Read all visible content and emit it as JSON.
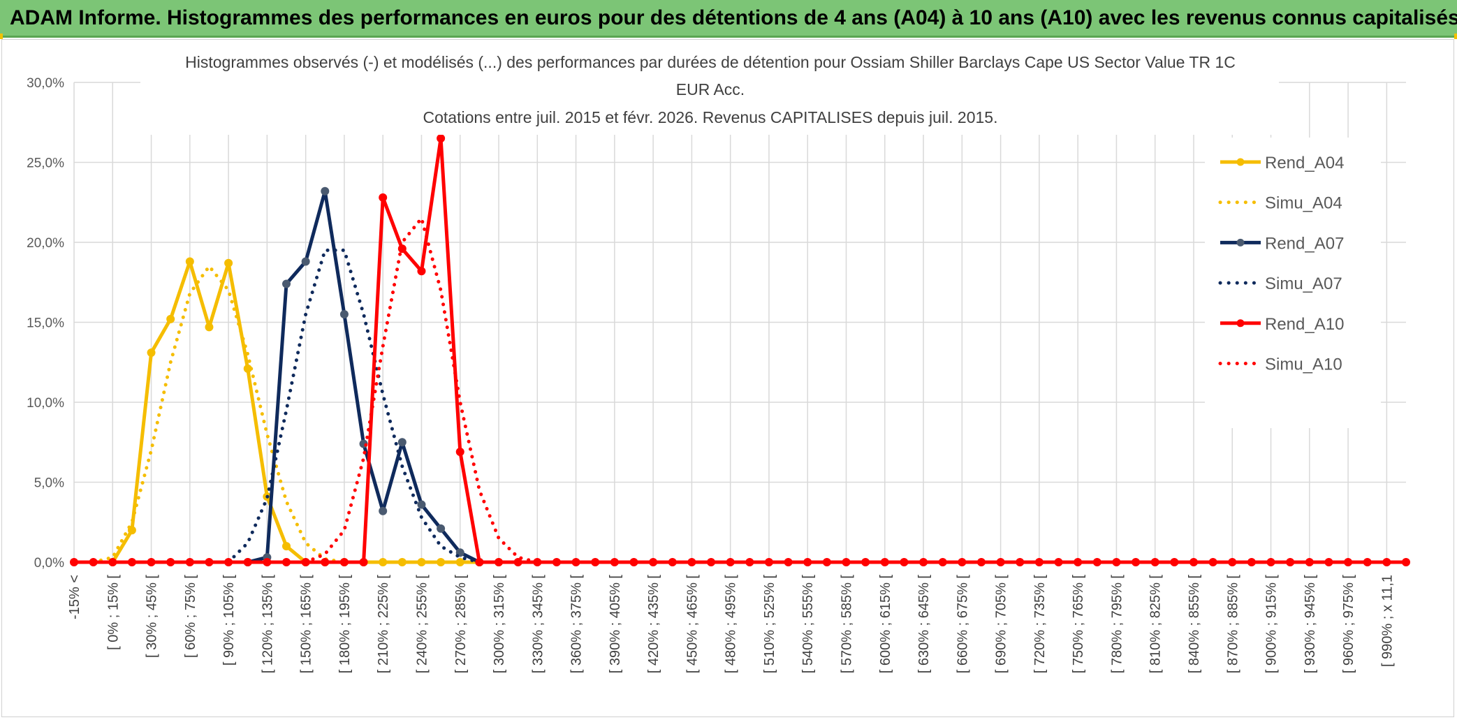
{
  "header": {
    "title": "ADAM Informe. Histogrammes des performances en euros pour des détentions de 4 ans (A04) à 10 ans (A10) avec les revenus connus capitalisés"
  },
  "colors": {
    "a04": "#f5bd00",
    "a07": "#0f2a5c",
    "a10": "#ff0000",
    "marker_a07": "#4a5a70",
    "header_bg": "#7cc576",
    "grid": "#d9d9d9"
  },
  "chart_data": {
    "type": "line",
    "title_lines": [
      "Histogrammes observés (-) et modélisés (...) des performances par durées de détention pour Ossiam Shiller Barclays Cape US Sector Value TR 1C",
      "EUR Acc.",
      "Cotations entre juil. 2015 et févr. 2026. Revenus CAPITALISES depuis juil. 2015."
    ],
    "y_ticks": [
      "0,0%",
      "5,0%",
      "10,0%",
      "15,0%",
      "20,0%",
      "25,0%",
      "30,0%"
    ],
    "ylim": [
      0,
      30
    ],
    "categories": [
      "-15% <",
      "[ 0% ; 15% [",
      "[ 30% ; 45% [",
      "[ 60% ; 75% [",
      "[ 90% ; 105% [",
      "[ 120% ; 135% [",
      "[ 150% ; 165% [",
      "[ 180% ; 195% [",
      "[ 210% ; 225% [",
      "[ 240% ; 255% [",
      "[ 270% ; 285% [",
      "[ 300% ; 315% [",
      "[ 330% ; 345% [",
      "[ 360% ; 375% [",
      "[ 390% ; 405% [",
      "[ 420% ; 435% [",
      "[ 450% ; 465% [",
      "[ 480% ; 495% [",
      "[ 510% ; 525% [",
      "[ 540% ; 555% [",
      "[ 570% ; 585% [",
      "[ 600% ; 615% [",
      "[ 630% ; 645% [",
      "[ 660% ; 675% [",
      "[ 690% ; 705% [",
      "[ 720% ; 735% [",
      "[ 750% ; 765% [",
      "[ 780% ; 795% [",
      "[ 810% ; 825% [",
      "[ 840% ; 855% [",
      "[ 870% ; 885% [",
      "[ 900% ; 915% [",
      "[ 930% ; 945% [",
      "[ 960% ; 975% [",
      "[ 990% ; x 11,1"
    ],
    "n_points": 70,
    "series": [
      {
        "name": "Rend_A04",
        "style": "solid",
        "color_key": "a04",
        "markers": true,
        "points": [
          [
            2,
            0
          ],
          [
            3,
            2.0
          ],
          [
            4,
            13.1
          ],
          [
            5,
            15.2
          ],
          [
            6,
            18.8
          ],
          [
            7,
            14.7
          ],
          [
            8,
            18.7
          ],
          [
            9,
            12.1
          ],
          [
            10,
            4.1
          ],
          [
            11,
            1.0
          ],
          [
            12,
            0
          ],
          [
            13,
            0
          ],
          [
            14,
            0
          ],
          [
            15,
            0
          ],
          [
            16,
            0
          ],
          [
            17,
            0
          ],
          [
            18,
            0
          ],
          [
            19,
            0
          ],
          [
            20,
            0
          ],
          [
            21,
            0
          ],
          [
            22,
            0
          ]
        ]
      },
      {
        "name": "Simu_A04",
        "style": "dotted",
        "color_key": "a04",
        "markers": false,
        "points": [
          [
            1,
            0
          ],
          [
            2,
            0.3
          ],
          [
            3,
            2.5
          ],
          [
            4,
            7.0
          ],
          [
            5,
            12.5
          ],
          [
            6,
            16.8
          ],
          [
            7,
            18.5
          ],
          [
            8,
            17.0
          ],
          [
            9,
            13.0
          ],
          [
            10,
            8.0
          ],
          [
            11,
            3.8
          ],
          [
            12,
            1.2
          ],
          [
            13,
            0.2
          ],
          [
            14,
            0
          ]
        ]
      },
      {
        "name": "Rend_A07",
        "style": "solid",
        "color_key": "a07",
        "markers": true,
        "points": [
          [
            9,
            0
          ],
          [
            10,
            0.3
          ],
          [
            11,
            17.4
          ],
          [
            12,
            18.8
          ],
          [
            13,
            23.2
          ],
          [
            14,
            15.5
          ],
          [
            15,
            7.4
          ],
          [
            16,
            3.2
          ],
          [
            17,
            7.5
          ],
          [
            18,
            3.6
          ],
          [
            19,
            2.1
          ],
          [
            20,
            0.6
          ],
          [
            21,
            0
          ]
        ]
      },
      {
        "name": "Simu_A07",
        "style": "dotted",
        "color_key": "a07",
        "markers": false,
        "points": [
          [
            8,
            0
          ],
          [
            9,
            1.2
          ],
          [
            10,
            4.0
          ],
          [
            11,
            9.5
          ],
          [
            12,
            15.5
          ],
          [
            13,
            19.5
          ],
          [
            14,
            19.5
          ],
          [
            15,
            15.5
          ],
          [
            16,
            10.5
          ],
          [
            17,
            6.0
          ],
          [
            18,
            2.8
          ],
          [
            19,
            1.0
          ],
          [
            20,
            0.3
          ],
          [
            21,
            0
          ]
        ]
      },
      {
        "name": "Rend_A10",
        "style": "solid",
        "color_key": "a10",
        "markers": true,
        "points": [
          [
            0,
            0
          ],
          [
            1,
            0
          ],
          [
            2,
            0
          ],
          [
            3,
            0
          ],
          [
            4,
            0
          ],
          [
            5,
            0
          ],
          [
            6,
            0
          ],
          [
            7,
            0
          ],
          [
            8,
            0
          ],
          [
            9,
            0
          ],
          [
            10,
            0
          ],
          [
            11,
            0
          ],
          [
            12,
            0
          ],
          [
            13,
            0
          ],
          [
            14,
            0
          ],
          [
            15,
            0
          ],
          [
            16,
            22.8
          ],
          [
            17,
            19.6
          ],
          [
            18,
            18.2
          ],
          [
            19,
            26.5
          ],
          [
            20,
            6.9
          ],
          [
            21,
            0
          ],
          [
            22,
            0
          ],
          [
            23,
            0
          ],
          [
            24,
            0
          ],
          [
            25,
            0
          ],
          [
            26,
            0
          ],
          [
            27,
            0
          ],
          [
            28,
            0
          ],
          [
            29,
            0
          ],
          [
            30,
            0
          ],
          [
            31,
            0
          ],
          [
            32,
            0
          ],
          [
            33,
            0
          ],
          [
            34,
            0
          ],
          [
            35,
            0
          ],
          [
            36,
            0
          ],
          [
            37,
            0
          ],
          [
            38,
            0
          ],
          [
            39,
            0
          ],
          [
            40,
            0
          ],
          [
            41,
            0
          ],
          [
            42,
            0
          ],
          [
            43,
            0
          ],
          [
            44,
            0
          ],
          [
            45,
            0
          ],
          [
            46,
            0
          ],
          [
            47,
            0
          ],
          [
            48,
            0
          ],
          [
            49,
            0
          ],
          [
            50,
            0
          ],
          [
            51,
            0
          ],
          [
            52,
            0
          ],
          [
            53,
            0
          ],
          [
            54,
            0
          ],
          [
            55,
            0
          ],
          [
            56,
            0
          ],
          [
            57,
            0
          ],
          [
            58,
            0
          ],
          [
            59,
            0
          ],
          [
            60,
            0
          ],
          [
            61,
            0
          ],
          [
            62,
            0
          ],
          [
            63,
            0
          ],
          [
            64,
            0
          ],
          [
            65,
            0
          ],
          [
            66,
            0
          ],
          [
            67,
            0
          ],
          [
            68,
            0
          ],
          [
            69,
            0
          ]
        ]
      },
      {
        "name": "Simu_A10",
        "style": "dotted",
        "color_key": "a10",
        "markers": false,
        "points": [
          [
            12,
            0
          ],
          [
            13,
            0.5
          ],
          [
            14,
            2.0
          ],
          [
            15,
            6.5
          ],
          [
            16,
            13.5
          ],
          [
            17,
            20.0
          ],
          [
            18,
            21.5
          ],
          [
            19,
            17.0
          ],
          [
            20,
            10.0
          ],
          [
            21,
            4.5
          ],
          [
            22,
            1.5
          ],
          [
            23,
            0.3
          ],
          [
            24,
            0
          ]
        ]
      }
    ],
    "legend": [
      {
        "label": "Rend_A04",
        "style": "solid",
        "color_key": "a04",
        "marker": true
      },
      {
        "label": "Simu_A04",
        "style": "dotted",
        "color_key": "a04",
        "marker": false
      },
      {
        "label": "Rend_A07",
        "style": "solid",
        "color_key": "a07",
        "marker": true
      },
      {
        "label": "Simu_A07",
        "style": "dotted",
        "color_key": "a07",
        "marker": false
      },
      {
        "label": "Rend_A10",
        "style": "solid",
        "color_key": "a10",
        "marker": true
      },
      {
        "label": "Simu_A10",
        "style": "dotted",
        "color_key": "a10",
        "marker": false
      }
    ],
    "legend_position": "top-right",
    "grid": true
  }
}
